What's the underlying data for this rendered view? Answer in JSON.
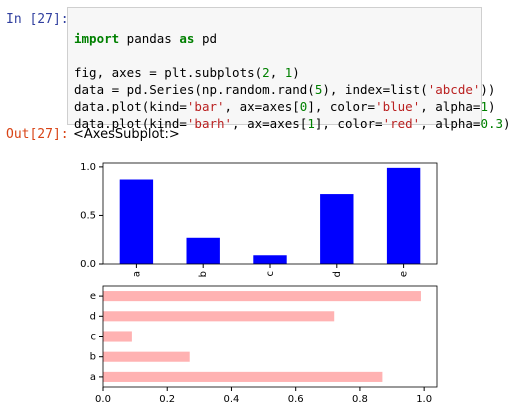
{
  "input_prompt": "In [27]:",
  "code": {
    "lines": [
      [
        "import",
        " pandas ",
        "as",
        " pd"
      ],
      [
        "fig, axes = plt.subplots(",
        "2",
        ", ",
        "1",
        ")"
      ],
      [
        "data = pd.Series(np.random.rand(",
        "5",
        "), index=list(",
        "'abcde'",
        "))"
      ],
      [
        "data.plot(kind=",
        "'bar'",
        ", ax=axes[",
        "0",
        "], color=",
        "'blue'",
        ", alpha=",
        "1",
        ")"
      ],
      [
        "data.plot(kind=",
        "'barh'",
        ", ax=axes[",
        "1",
        "], color=",
        "'red'",
        ", alpha=",
        "0.3",
        ")"
      ]
    ]
  },
  "output_prompt": "Out[27]:",
  "output_text": "<AxesSubplot:>",
  "chart_data": [
    {
      "type": "bar",
      "categories": [
        "a",
        "b",
        "c",
        "d",
        "e"
      ],
      "values": [
        0.87,
        0.27,
        0.09,
        0.72,
        0.99
      ],
      "color": "blue",
      "alpha": 1,
      "ylim": [
        0,
        1.04
      ],
      "yticks": [
        {
          "value": 0,
          "label": "0.0"
        },
        {
          "value": 0.5,
          "label": "0.5"
        },
        {
          "value": 1,
          "label": "1.0"
        }
      ]
    },
    {
      "type": "barh",
      "categories": [
        "a",
        "b",
        "c",
        "d",
        "e"
      ],
      "values": [
        0.87,
        0.27,
        0.09,
        0.72,
        0.99
      ],
      "color": "red",
      "alpha": 0.3,
      "xlim": [
        0,
        1.04
      ],
      "xticks": [
        {
          "value": 0,
          "label": "0.0"
        },
        {
          "value": 0.2,
          "label": "0.2"
        },
        {
          "value": 0.4,
          "label": "0.4"
        },
        {
          "value": 0.6,
          "label": "0.6"
        },
        {
          "value": 0.8,
          "label": "0.8"
        },
        {
          "value": 1,
          "label": "1.0"
        }
      ]
    }
  ]
}
